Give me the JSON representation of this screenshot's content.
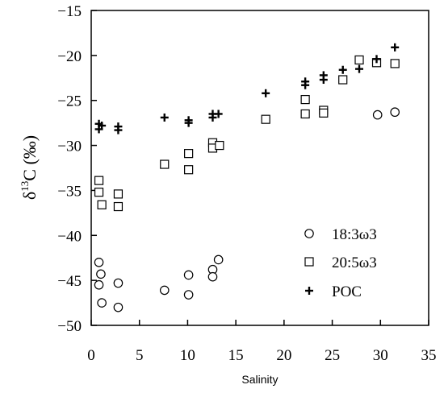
{
  "chart_data": {
    "type": "scatter",
    "title": "",
    "xlabel": "Salinity",
    "ylabel": {
      "delta": "δ",
      "superscript": "13",
      "rest": "C (‰)"
    },
    "xlim": [
      0,
      35
    ],
    "ylim": [
      -50,
      -15
    ],
    "xticks": [
      "0",
      "5",
      "10",
      "15",
      "20",
      "25",
      "30",
      "35"
    ],
    "yticks": [
      "−15",
      "−20",
      "−25",
      "−30",
      "−35",
      "−40",
      "−45",
      "−50"
    ],
    "grid": false,
    "legend_position": "bottom-right",
    "series": [
      {
        "name": "18:3ω3",
        "marker": "circle",
        "points": [
          [
            0.8,
            -43.0
          ],
          [
            1.0,
            -44.3
          ],
          [
            0.8,
            -45.5
          ],
          [
            1.1,
            -47.5
          ],
          [
            2.8,
            -45.3
          ],
          [
            2.8,
            -48.0
          ],
          [
            7.6,
            -46.1
          ],
          [
            10.1,
            -44.4
          ],
          [
            10.1,
            -46.6
          ],
          [
            12.6,
            -43.8
          ],
          [
            12.6,
            -44.6
          ],
          [
            13.2,
            -42.7
          ],
          [
            29.7,
            -26.6
          ],
          [
            31.5,
            -26.3
          ]
        ]
      },
      {
        "name": "20:5ω3",
        "marker": "square",
        "points": [
          [
            0.8,
            -33.9
          ],
          [
            0.8,
            -35.2
          ],
          [
            1.1,
            -36.6
          ],
          [
            2.8,
            -35.4
          ],
          [
            2.8,
            -36.8
          ],
          [
            7.6,
            -32.1
          ],
          [
            10.1,
            -30.9
          ],
          [
            10.1,
            -32.7
          ],
          [
            12.6,
            -29.7
          ],
          [
            12.6,
            -30.3
          ],
          [
            13.3,
            -30.0
          ],
          [
            18.1,
            -27.1
          ],
          [
            22.2,
            -24.9
          ],
          [
            22.2,
            -26.5
          ],
          [
            24.1,
            -26.1
          ],
          [
            24.1,
            -26.4
          ],
          [
            26.1,
            -22.7
          ],
          [
            27.8,
            -20.5
          ],
          [
            29.6,
            -20.8
          ],
          [
            31.5,
            -20.9
          ]
        ]
      },
      {
        "name": "POC",
        "marker": "plus",
        "points": [
          [
            0.8,
            -27.6
          ],
          [
            0.8,
            -28.2
          ],
          [
            1.1,
            -27.8
          ],
          [
            2.8,
            -27.9
          ],
          [
            2.8,
            -28.3
          ],
          [
            7.6,
            -26.9
          ],
          [
            10.1,
            -27.2
          ],
          [
            10.1,
            -27.5
          ],
          [
            12.6,
            -26.5
          ],
          [
            12.6,
            -26.9
          ],
          [
            13.2,
            -26.5
          ],
          [
            18.1,
            -24.2
          ],
          [
            22.2,
            -22.9
          ],
          [
            22.2,
            -23.3
          ],
          [
            24.1,
            -22.2
          ],
          [
            24.1,
            -22.7
          ],
          [
            26.1,
            -21.6
          ],
          [
            27.8,
            -21.5
          ],
          [
            29.6,
            -20.4
          ],
          [
            31.5,
            -19.1
          ]
        ]
      }
    ]
  }
}
